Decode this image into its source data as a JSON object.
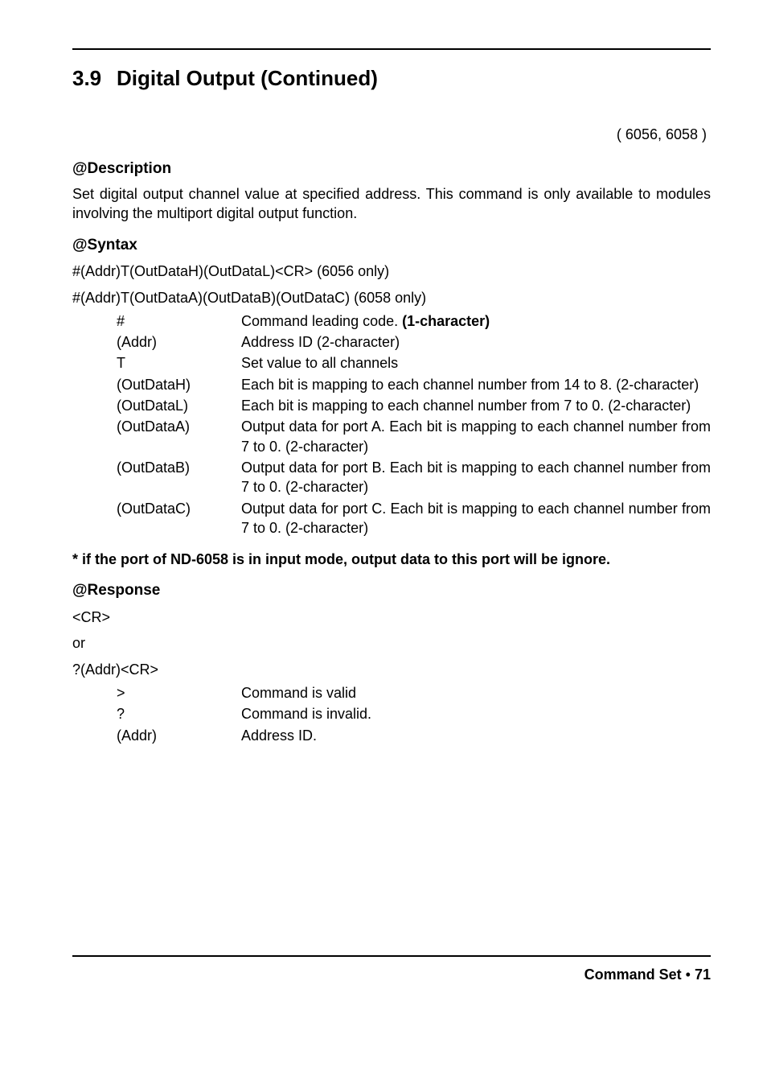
{
  "section": {
    "number": "3.9",
    "title": "Digital Output (Continued)"
  },
  "models": "( 6056, 6058 )",
  "description": {
    "heading": "@Description",
    "text": "Set digital output channel value at specified address.  This command is only available to modules involving the multiport digital output function."
  },
  "syntax": {
    "heading": "@Syntax",
    "line1": "#(Addr)T(OutDataH)(OutDataL)<CR>  (6056 only)",
    "line2": "#(Addr)T(OutDataA)(OutDataB)(OutDataC) (6058 only)",
    "params": [
      {
        "name": "#",
        "desc_pre": "Command leading code. ",
        "desc_bold": "(1-character)",
        "desc_post": ""
      },
      {
        "name": "(Addr)",
        "desc_pre": "Address ID (2-character)",
        "desc_bold": "",
        "desc_post": ""
      },
      {
        "name": "T",
        "desc_pre": "Set value to all channels",
        "desc_bold": "",
        "desc_post": ""
      },
      {
        "name": "(OutDataH)",
        "desc_pre": "Each bit is mapping to each channel number from 14 to 8. (2-character)",
        "desc_bold": "",
        "desc_post": ""
      },
      {
        "name": "(OutDataL)",
        "desc_pre": "Each bit is mapping to each channel number from 7 to 0. (2-character)",
        "desc_bold": "",
        "desc_post": ""
      },
      {
        "name": "(OutDataA)",
        "desc_pre": "Output data for port A. Each bit is mapping to each channel number from 7 to 0. (2-character)",
        "desc_bold": "",
        "desc_post": ""
      },
      {
        "name": "(OutDataB)",
        "desc_pre": "Output data for port B. Each bit is mapping to each channel number from 7 to 0. (2-character)",
        "desc_bold": "",
        "desc_post": ""
      },
      {
        "name": "(OutDataC)",
        "desc_pre": "Output data for port C. Each bit is mapping to each channel number from 7 to 0. (2-character)",
        "desc_bold": "",
        "desc_post": ""
      }
    ]
  },
  "note": "* if the port of ND-6058 is in input mode, output data to this port will be ignore.",
  "response": {
    "heading": "@Response",
    "line1": "<CR>",
    "or": "or",
    "line2": "?(Addr)<CR>",
    "params": [
      {
        "name": ">",
        "desc": "Command is valid"
      },
      {
        "name": "?",
        "desc": "Command is invalid."
      },
      {
        "name": "(Addr)",
        "desc": "Address ID."
      }
    ]
  },
  "footer": {
    "label": "Command Set",
    "bullet": "•",
    "page": "71"
  }
}
